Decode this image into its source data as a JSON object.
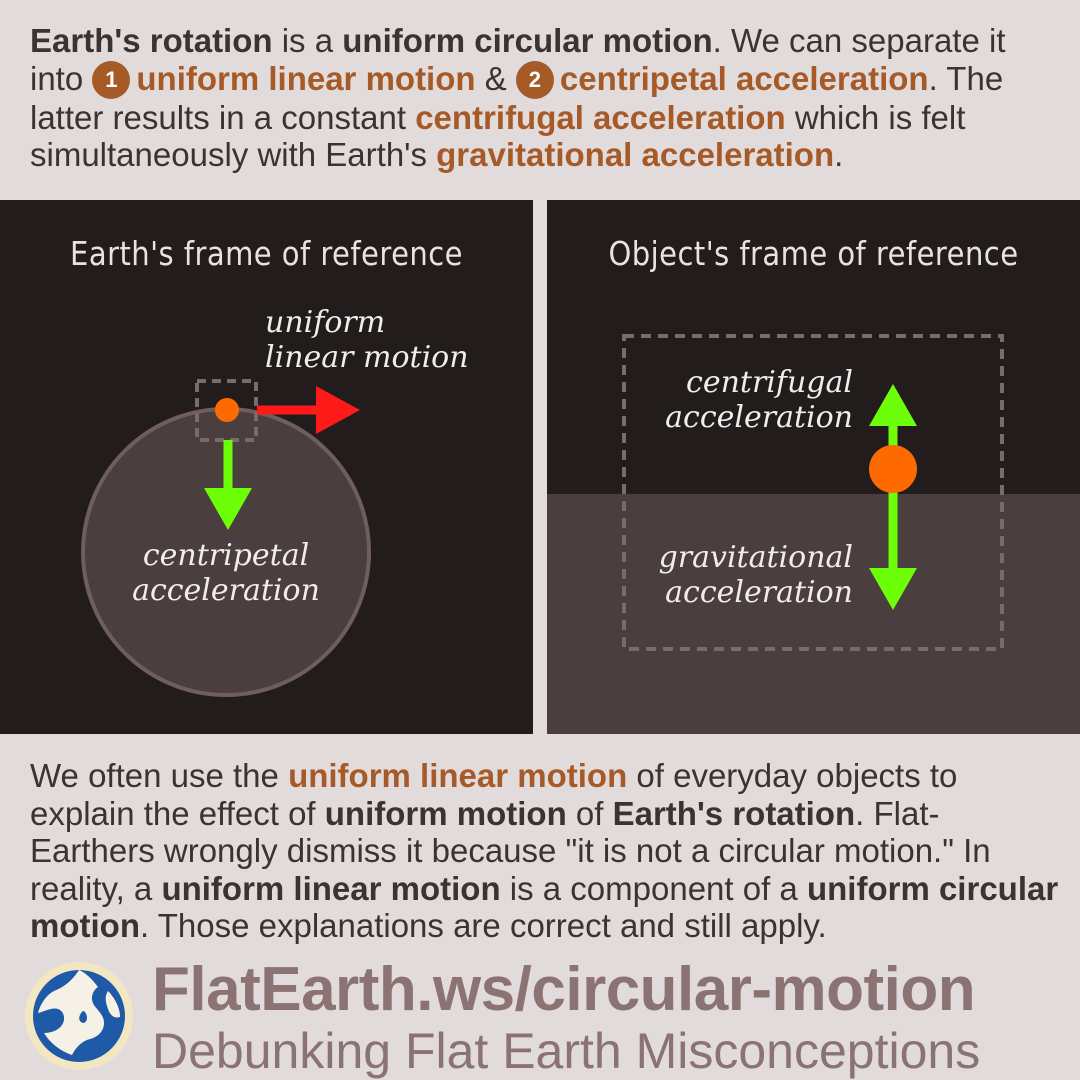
{
  "intro": {
    "s1": "Earth's rotation",
    "s2": " is a ",
    "s3": "uniform circular motion",
    "s4": ". We can separate it into ",
    "n1": "1",
    "s5": "uniform linear motion",
    "s6": " & ",
    "n2": "2",
    "s7": "centripetal acceleration",
    "s8": ". The latter results in a constant ",
    "s9": "centrifugal acceleration",
    "s10": " which is felt simultaneously with Earth's ",
    "s11": "gravitational acceleration",
    "s12": "."
  },
  "left_panel": {
    "title": "Earth's frame of reference",
    "label_linear_1": "uniform",
    "label_linear_2": "linear motion",
    "label_centripetal_1": "centripetal",
    "label_centripetal_2": "acceleration"
  },
  "right_panel": {
    "title": "Object's frame of reference",
    "label_centrifugal_1": "centrifugal",
    "label_centrifugal_2": "acceleration",
    "label_gravitational_1": "gravitational",
    "label_gravitational_2": "acceleration"
  },
  "outro": {
    "s1": "We often use the ",
    "s2": "uniform linear motion",
    "s3": " of everyday objects to explain the effect of ",
    "s4": "uniform motion",
    "s5": " of ",
    "s6": "Earth's rotation",
    "s7": ". Flat-Earthers wrongly dismiss it because \"it is not a circular motion.\" In reality, a ",
    "s8": "uniform linear motion",
    "s9": " is a component of a ",
    "s10": "uniform circular motion",
    "s11": ". Those explanations are correct and still apply."
  },
  "footer": {
    "url": "FlatEarth.ws/circular-motion",
    "tagline": "Debunking Flat Earth Misconceptions"
  },
  "colors": {
    "background": "#e2dbdb",
    "panel": "#231c1d",
    "ground": "#4a3e3e",
    "earth": "#4a3e3e",
    "object": "#ff6a00",
    "linear_arrow": "#ff1a1a",
    "acceleration_arrow": "#6dff0a",
    "highlight_text": "#a65a27",
    "footer_text": "#8b7373"
  }
}
